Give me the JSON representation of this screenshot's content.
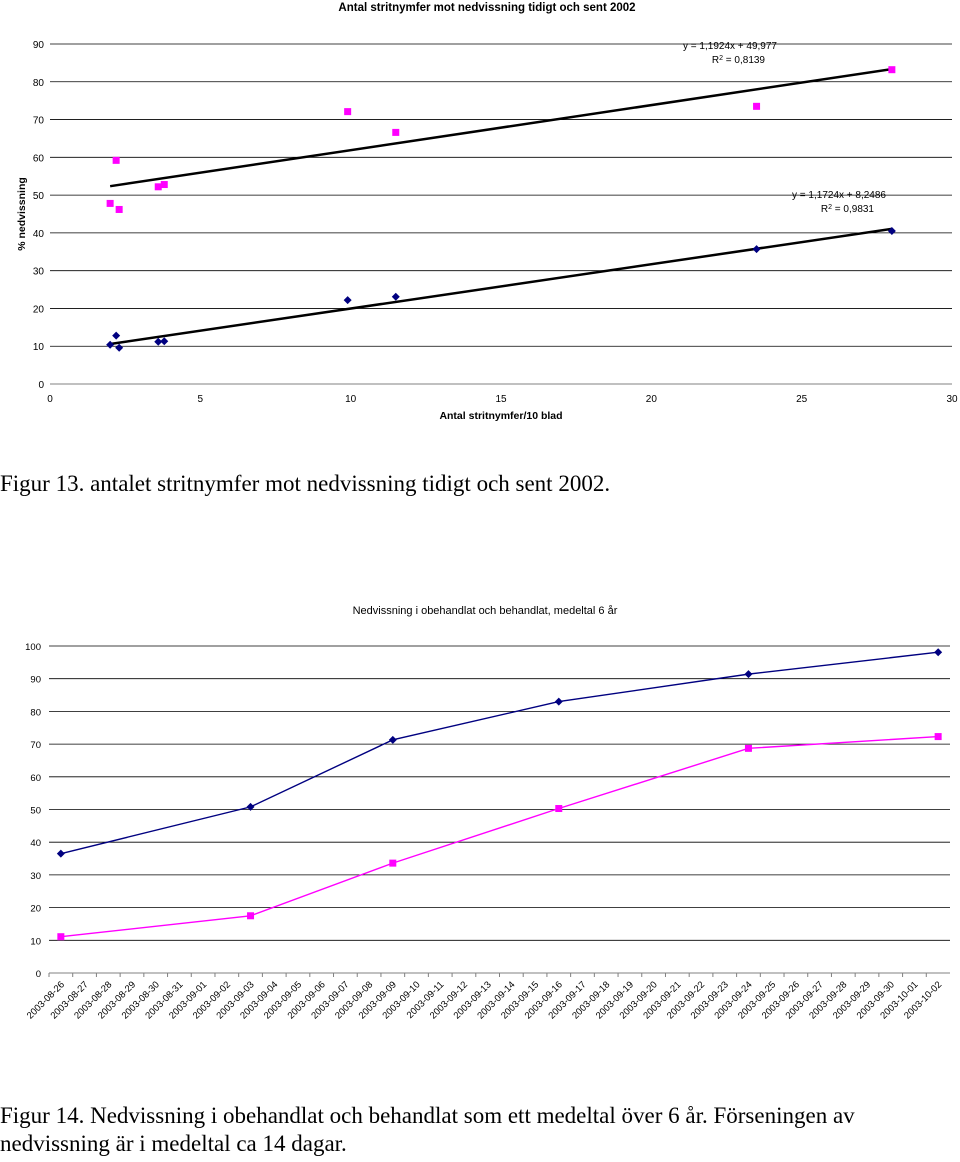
{
  "chart_data": [
    {
      "type": "scatter",
      "title": "Antal stritnymfer mot nedvissning tidigt och sent 2002",
      "xlabel": "Antal stritnymfer/10 blad",
      "ylabel": "% nedvissning",
      "xlim": [
        0,
        30
      ],
      "ylim": [
        0,
        90
      ],
      "x_ticks": [
        "0",
        "5",
        "10",
        "15",
        "20",
        "25",
        "30"
      ],
      "y_ticks": [
        "0",
        "10",
        "20",
        "30",
        "40",
        "50",
        "60",
        "70",
        "80",
        "90"
      ],
      "grid": true,
      "series": [
        {
          "color": "#ff00ff",
          "marker": "square",
          "points": [
            [
              2.0,
              47.8
            ],
            [
              2.2,
              59.2
            ],
            [
              2.3,
              46.2
            ],
            [
              3.6,
              52.2
            ],
            [
              3.8,
              52.8
            ],
            [
              9.9,
              72.1
            ],
            [
              11.5,
              66.6
            ],
            [
              23.5,
              73.5
            ],
            [
              28.0,
              83.2
            ]
          ],
          "trendline": {
            "slope": 1.1924,
            "intercept": 49.977,
            "x_range": [
              2.0,
              28.0
            ]
          },
          "equation": "y = 1,1924x + 49,977",
          "r2_label": "R",
          "r2_value": " = 0,8139"
        },
        {
          "color": "#000080",
          "marker": "diamond",
          "points": [
            [
              2.0,
              10.4
            ],
            [
              2.2,
              12.8
            ],
            [
              2.3,
              9.6
            ],
            [
              3.6,
              11.2
            ],
            [
              3.8,
              11.3
            ],
            [
              9.9,
              22.2
            ],
            [
              11.5,
              23.1
            ],
            [
              23.5,
              35.7
            ],
            [
              28.0,
              40.5
            ]
          ],
          "trendline": {
            "slope": 1.1724,
            "intercept": 8.2486,
            "x_range": [
              2.0,
              28.0
            ]
          },
          "equation": "y = 1,1724x + 8,2486",
          "r2_label": "R",
          "r2_value": " = 0,9831"
        }
      ]
    },
    {
      "type": "line",
      "title": "Nedvissning i obehandlat och behandlat, medeltal 6 år",
      "categories": [
        "2003-08-26",
        "2003-08-27",
        "2003-08-28",
        "2003-08-29",
        "2003-08-30",
        "2003-08-31",
        "2003-09-01",
        "2003-09-02",
        "2003-09-03",
        "2003-09-04",
        "2003-09-05",
        "2003-09-06",
        "2003-09-07",
        "2003-09-08",
        "2003-09-09",
        "2003-09-10",
        "2003-09-11",
        "2003-09-12",
        "2003-09-13",
        "2003-09-14",
        "2003-09-15",
        "2003-09-16",
        "2003-09-17",
        "2003-09-18",
        "2003-09-19",
        "2003-09-20",
        "2003-09-21",
        "2003-09-22",
        "2003-09-23",
        "2003-09-24",
        "2003-09-25",
        "2003-09-26",
        "2003-09-27",
        "2003-09-28",
        "2003-09-29",
        "2003-09-30",
        "2003-10-01",
        "2003-10-02"
      ],
      "ylim": [
        0,
        100
      ],
      "y_ticks": [
        "0",
        "10",
        "20",
        "30",
        "40",
        "50",
        "60",
        "70",
        "80",
        "90",
        "100"
      ],
      "grid": true,
      "series": [
        {
          "color": "#000080",
          "marker": "diamond",
          "points": [
            [
              "2003-08-26",
              36.5
            ],
            [
              "2003-09-03",
              50.8
            ],
            [
              "2003-09-09",
              71.3
            ],
            [
              "2003-09-16",
              83.0
            ],
            [
              "2003-09-24",
              91.4
            ],
            [
              "2003-10-02",
              98.1
            ]
          ]
        },
        {
          "color": "#ff00ff",
          "marker": "square",
          "points": [
            [
              "2003-08-26",
              11.1
            ],
            [
              "2003-09-03",
              17.5
            ],
            [
              "2003-09-09",
              33.6
            ],
            [
              "2003-09-16",
              50.3
            ],
            [
              "2003-09-24",
              68.7
            ],
            [
              "2003-10-02",
              72.3
            ]
          ]
        }
      ]
    }
  ],
  "captions": {
    "fig13": "Figur 13. antalet stritnymfer mot nedvissning tidigt och sent 2002.",
    "fig14_line1": "Figur 14. Nedvissning i obehandlat och behandlat som ett medeltal över 6 år. Förseningen av",
    "fig14_line2": "nedvissning är i medeltal ca 14 dagar."
  }
}
